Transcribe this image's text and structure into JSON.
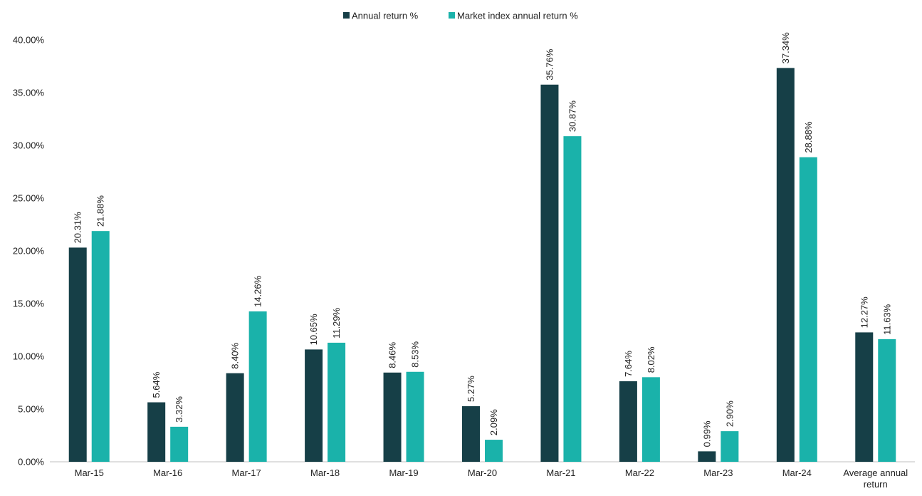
{
  "chart_data": {
    "type": "bar",
    "title": "",
    "xlabel": "",
    "ylabel": "",
    "categories": [
      "Mar-15",
      "Mar-16",
      "Mar-17",
      "Mar-18",
      "Mar-19",
      "Mar-20",
      "Mar-21",
      "Mar-22",
      "Mar-23",
      "Mar-24",
      "Average annual return"
    ],
    "series": [
      {
        "name": "Annual return %",
        "color": "#163f47",
        "values": [
          20.31,
          5.64,
          8.4,
          10.65,
          8.46,
          5.27,
          35.76,
          7.64,
          0.99,
          37.34,
          12.27
        ],
        "labels": [
          "20.31%",
          "5.64%",
          "8.40%",
          "10.65%",
          "8.46%",
          "5.27%",
          "35.76%",
          "7.64%",
          "0.99%",
          "37.34%",
          "12.27%"
        ]
      },
      {
        "name": "Market index annual return %",
        "color": "#1ab2aa",
        "values": [
          21.88,
          3.32,
          14.26,
          11.29,
          8.53,
          2.09,
          30.87,
          8.02,
          2.9,
          28.88,
          11.63
        ],
        "labels": [
          "21.88%",
          "3.32%",
          "14.26%",
          "11.29%",
          "8.53%",
          "2.09%",
          "30.87%",
          "8.02%",
          "2.90%",
          "28.88%",
          "11.63%"
        ]
      }
    ],
    "ylim": [
      0,
      40
    ],
    "yticks": [
      0,
      5,
      10,
      15,
      20,
      25,
      30,
      35,
      40
    ],
    "ytick_labels": [
      "0.00%",
      "5.00%",
      "10.00%",
      "15.00%",
      "20.00%",
      "25.00%",
      "30.00%",
      "35.00%",
      "40.00%"
    ],
    "grid": false,
    "legend_position": "top-center"
  }
}
